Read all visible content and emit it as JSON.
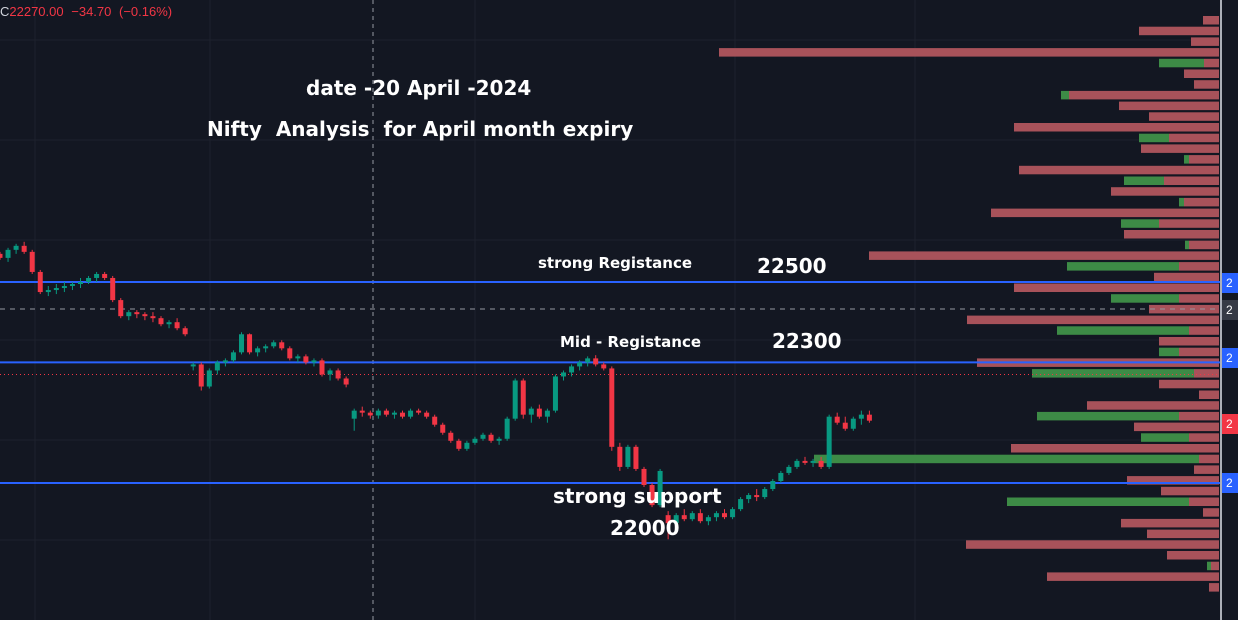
{
  "header": {
    "prefix": "C",
    "close": "22270.00",
    "change": "−34.70",
    "change_pct": "(−0.16%)"
  },
  "annotations": {
    "date": "date -20 April -2024",
    "analysis": "Nifty  Analysis  for April month expiry",
    "strong_res_label": "strong Registance",
    "strong_res_value": "22500",
    "mid_res_label": "Mid - Registance",
    "mid_res_value": "22300",
    "support_label": "strong support",
    "support_value": "22000"
  },
  "price_tags": [
    {
      "label": "2",
      "color": "#2962ff"
    },
    {
      "label": "2",
      "color": "#363a45"
    },
    {
      "label": "2",
      "color": "#2962ff"
    },
    {
      "label": "2",
      "color": "#f23645"
    },
    {
      "label": "2",
      "color": "#2962ff"
    }
  ],
  "colors": {
    "background": "#131722",
    "up": "#089981",
    "down": "#f23645",
    "level_line": "#2962ff",
    "vp_up": "#3d8b46",
    "vp_down": "#a8525a"
  },
  "chart_data": {
    "type": "candlestick",
    "title": "",
    "last_close": 22270.0,
    "change": -34.7,
    "change_pct": -0.16,
    "levels": [
      {
        "label": "strong Registance",
        "value": 22500
      },
      {
        "label": "Mid - Registance",
        "value": 22300
      },
      {
        "label": "strong support",
        "value": 22000
      }
    ],
    "ohlc_approx": [
      [
        22570,
        22575,
        22555,
        22560
      ],
      [
        22560,
        22585,
        22550,
        22580
      ],
      [
        22580,
        22595,
        22570,
        22590
      ],
      [
        22590,
        22600,
        22570,
        22575
      ],
      [
        22575,
        22580,
        22520,
        22525
      ],
      [
        22525,
        22530,
        22470,
        22475
      ],
      [
        22475,
        22490,
        22465,
        22480
      ],
      [
        22480,
        22495,
        22470,
        22485
      ],
      [
        22485,
        22500,
        22475,
        22490
      ],
      [
        22490,
        22500,
        22480,
        22495
      ],
      [
        22495,
        22510,
        22485,
        22500
      ],
      [
        22500,
        22515,
        22495,
        22510
      ],
      [
        22510,
        22525,
        22500,
        22520
      ],
      [
        22520,
        22525,
        22505,
        22510
      ],
      [
        22510,
        22515,
        22450,
        22455
      ],
      [
        22455,
        22460,
        22410,
        22415
      ],
      [
        22415,
        22430,
        22405,
        22425
      ],
      [
        22425,
        22430,
        22410,
        22420
      ],
      [
        22420,
        22425,
        22405,
        22415
      ],
      [
        22415,
        22425,
        22400,
        22410
      ],
      [
        22410,
        22415,
        22390,
        22395
      ],
      [
        22395,
        22405,
        22385,
        22400
      ],
      [
        22400,
        22410,
        22380,
        22385
      ],
      [
        22385,
        22390,
        22365,
        22370
      ],
      [
        22290,
        22300,
        22280,
        22295
      ],
      [
        22295,
        22300,
        22230,
        22240
      ],
      [
        22240,
        22285,
        22235,
        22280
      ],
      [
        22280,
        22305,
        22270,
        22300
      ],
      [
        22300,
        22310,
        22290,
        22305
      ],
      [
        22305,
        22330,
        22300,
        22325
      ],
      [
        22325,
        22375,
        22320,
        22370
      ],
      [
        22370,
        22372,
        22320,
        22325
      ],
      [
        22325,
        22340,
        22315,
        22335
      ],
      [
        22335,
        22345,
        22325,
        22340
      ],
      [
        22340,
        22355,
        22335,
        22350
      ],
      [
        22350,
        22355,
        22330,
        22335
      ],
      [
        22335,
        22340,
        22305,
        22310
      ],
      [
        22310,
        22320,
        22300,
        22315
      ],
      [
        22315,
        22320,
        22295,
        22300
      ],
      [
        22300,
        22310,
        22290,
        22305
      ],
      [
        22305,
        22310,
        22265,
        22270
      ],
      [
        22270,
        22285,
        22255,
        22280
      ],
      [
        22280,
        22285,
        22255,
        22260
      ],
      [
        22260,
        22265,
        22238,
        22245
      ],
      [
        22160,
        22185,
        22130,
        22180
      ],
      [
        22180,
        22190,
        22165,
        22175
      ],
      [
        22175,
        22180,
        22160,
        22168
      ],
      [
        22168,
        22185,
        22160,
        22180
      ],
      [
        22180,
        22185,
        22165,
        22170
      ],
      [
        22170,
        22180,
        22160,
        22175
      ],
      [
        22175,
        22180,
        22160,
        22165
      ],
      [
        22165,
        22185,
        22160,
        22180
      ],
      [
        22180,
        22185,
        22170,
        22175
      ],
      [
        22175,
        22180,
        22160,
        22165
      ],
      [
        22165,
        22170,
        22140,
        22145
      ],
      [
        22145,
        22150,
        22120,
        22125
      ],
      [
        22125,
        22130,
        22100,
        22105
      ],
      [
        22105,
        22110,
        22080,
        22085
      ],
      [
        22085,
        22105,
        22080,
        22100
      ],
      [
        22100,
        22115,
        22095,
        22110
      ],
      [
        22110,
        22125,
        22105,
        22120
      ],
      [
        22120,
        22125,
        22100,
        22105
      ],
      [
        22105,
        22115,
        22095,
        22110
      ],
      [
        22110,
        22165,
        22105,
        22160
      ],
      [
        22160,
        22260,
        22155,
        22255
      ],
      [
        22255,
        22260,
        22160,
        22170
      ],
      [
        22170,
        22190,
        22150,
        22185
      ],
      [
        22185,
        22195,
        22160,
        22165
      ],
      [
        22165,
        22185,
        22150,
        22180
      ],
      [
        22180,
        22270,
        22175,
        22265
      ],
      [
        22265,
        22280,
        22255,
        22275
      ],
      [
        22275,
        22295,
        22265,
        22290
      ],
      [
        22290,
        22305,
        22280,
        22300
      ],
      [
        22300,
        22315,
        22290,
        22310
      ],
      [
        22310,
        22318,
        22290,
        22295
      ],
      [
        22295,
        22300,
        22280,
        22285
      ],
      [
        22285,
        22290,
        22080,
        22090
      ],
      [
        22090,
        22100,
        22030,
        22040
      ],
      [
        22040,
        22095,
        22035,
        22090
      ],
      [
        22090,
        22095,
        22030,
        22035
      ],
      [
        22035,
        22040,
        21990,
        21995
      ],
      [
        21995,
        22000,
        21940,
        21945
      ],
      [
        21945,
        22035,
        21940,
        22030
      ],
      [
        21920,
        21930,
        21860,
        21900
      ],
      [
        21900,
        21925,
        21895,
        21920
      ],
      [
        21920,
        21935,
        21905,
        21910
      ],
      [
        21910,
        21930,
        21905,
        21925
      ],
      [
        21925,
        21935,
        21900,
        21905
      ],
      [
        21905,
        21920,
        21895,
        21915
      ],
      [
        21915,
        21930,
        21905,
        21925
      ],
      [
        21925,
        21935,
        21910,
        21915
      ],
      [
        21915,
        21940,
        21910,
        21935
      ],
      [
        21935,
        21965,
        21930,
        21960
      ],
      [
        21960,
        21975,
        21950,
        21970
      ],
      [
        21970,
        21985,
        21955,
        21965
      ],
      [
        21965,
        21990,
        21960,
        21985
      ],
      [
        21985,
        22010,
        21980,
        22005
      ],
      [
        22005,
        22030,
        22000,
        22025
      ],
      [
        22025,
        22045,
        22020,
        22040
      ],
      [
        22040,
        22060,
        22035,
        22055
      ],
      [
        22055,
        22065,
        22045,
        22050
      ],
      [
        22050,
        22060,
        22040,
        22055
      ],
      [
        22055,
        22065,
        22035,
        22040
      ],
      [
        22040,
        22170,
        22035,
        22165
      ],
      [
        22165,
        22175,
        22145,
        22150
      ],
      [
        22150,
        22165,
        22130,
        22135
      ],
      [
        22135,
        22165,
        22130,
        22160
      ],
      [
        22160,
        22180,
        22145,
        22170
      ],
      [
        22170,
        22180,
        22150,
        22155
      ]
    ],
    "volume_profile_approx": [
      {
        "up": 0,
        "down": 16
      },
      {
        "up": 0,
        "down": 80
      },
      {
        "up": 0,
        "down": 28
      },
      {
        "up": 0,
        "down": 500
      },
      {
        "up": 45,
        "down": 15
      },
      {
        "up": 0,
        "down": 35
      },
      {
        "up": 0,
        "down": 25
      },
      {
        "up": 8,
        "down": 150
      },
      {
        "up": 0,
        "down": 100
      },
      {
        "up": 0,
        "down": 70
      },
      {
        "up": 0,
        "down": 205
      },
      {
        "up": 30,
        "down": 50
      },
      {
        "up": 0,
        "down": 78
      },
      {
        "up": 5,
        "down": 30
      },
      {
        "up": 0,
        "down": 200
      },
      {
        "up": 40,
        "down": 55
      },
      {
        "up": 0,
        "down": 108
      },
      {
        "up": 5,
        "down": 35
      },
      {
        "up": 0,
        "down": 228
      },
      {
        "up": 38,
        "down": 60
      },
      {
        "up": 0,
        "down": 95
      },
      {
        "up": 4,
        "down": 30
      },
      {
        "up": 0,
        "down": 350
      },
      {
        "up": 112,
        "down": 40
      },
      {
        "up": 0,
        "down": 65
      },
      {
        "up": 0,
        "down": 205
      },
      {
        "up": 68,
        "down": 40
      },
      {
        "up": 0,
        "down": 70
      },
      {
        "up": 0,
        "down": 252
      },
      {
        "up": 132,
        "down": 30
      },
      {
        "up": 0,
        "down": 60
      },
      {
        "up": 20,
        "down": 40
      },
      {
        "up": 0,
        "down": 242
      },
      {
        "up": 162,
        "down": 25
      },
      {
        "up": 0,
        "down": 60
      },
      {
        "up": 0,
        "down": 20
      },
      {
        "up": 0,
        "down": 132
      },
      {
        "up": 142,
        "down": 40
      },
      {
        "up": 0,
        "down": 85
      },
      {
        "up": 48,
        "down": 30
      },
      {
        "up": 0,
        "down": 208
      },
      {
        "up": 385,
        "down": 20
      },
      {
        "up": 0,
        "down": 25
      },
      {
        "up": 0,
        "down": 92
      },
      {
        "up": 0,
        "down": 58
      },
      {
        "up": 182,
        "down": 30
      },
      {
        "up": 0,
        "down": 16
      },
      {
        "up": 0,
        "down": 98
      },
      {
        "up": 0,
        "down": 72
      },
      {
        "up": 0,
        "down": 253
      },
      {
        "up": 0,
        "down": 52
      },
      {
        "up": 4,
        "down": 8
      },
      {
        "up": 0,
        "down": 172
      },
      {
        "up": 0,
        "down": 10
      }
    ]
  }
}
